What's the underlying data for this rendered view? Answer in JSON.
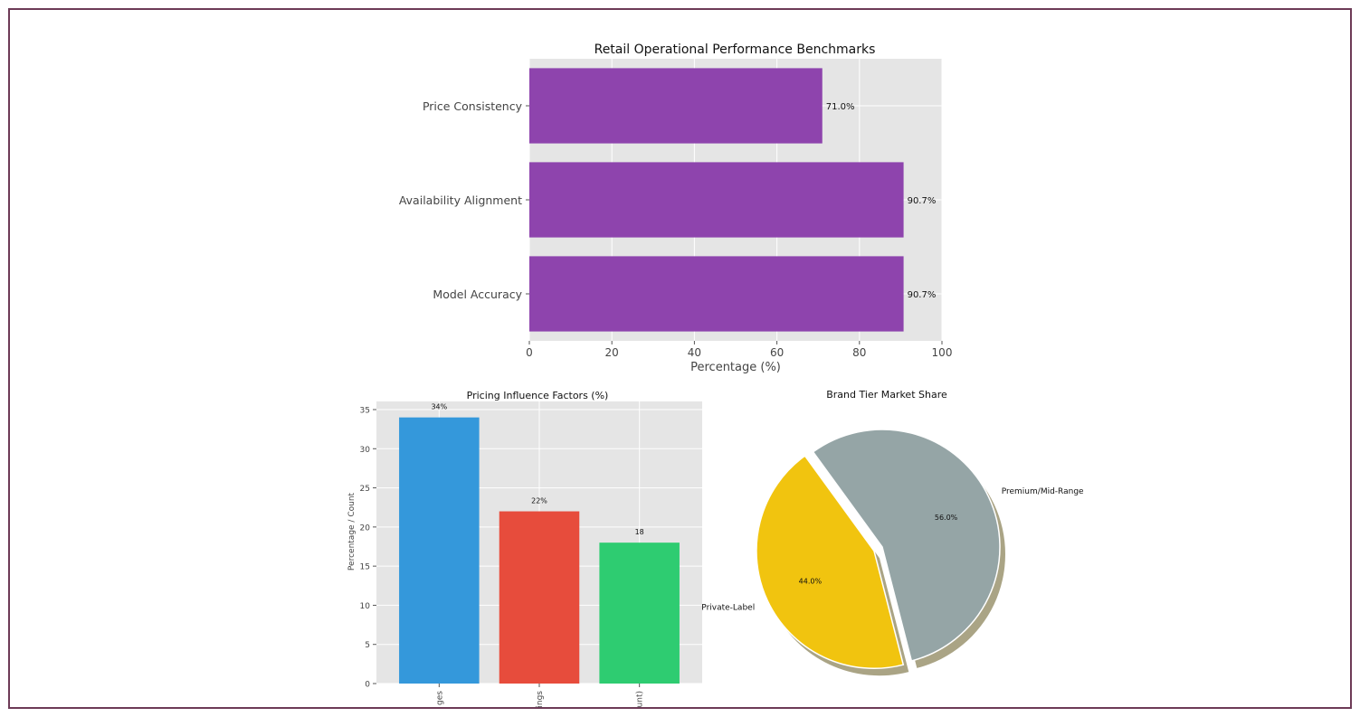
{
  "chart_data": [
    {
      "type": "bar",
      "orientation": "horizontal",
      "title": "Retail Operational Performance Benchmarks",
      "xlabel": "Percentage (%)",
      "ylabel": "",
      "categories": [
        "Price Consistency",
        "Availability Alignment",
        "Model Accuracy"
      ],
      "values": [
        71.0,
        90.7,
        90.7
      ],
      "labels": [
        "71.0%",
        "90.7%",
        "90.7%"
      ],
      "xlim": [
        0,
        100
      ],
      "xticks": [
        "0",
        "20",
        "40",
        "60",
        "80",
        "100"
      ],
      "grid": true,
      "bar_color": "#8e44ad"
    },
    {
      "type": "bar",
      "title": "Pricing Influence Factors (%)",
      "xlabel": "",
      "ylabel": "Percentage / Count",
      "categories": [
        "ges",
        "ings",
        "unt)"
      ],
      "values": [
        34,
        22,
        18
      ],
      "labels": [
        "34%",
        "22%",
        "18"
      ],
      "colors": [
        "#3498db",
        "#e74c3c",
        "#2ecc71"
      ],
      "ylim": [
        0,
        35
      ],
      "yticks": [
        "0",
        "5",
        "10",
        "15",
        "20",
        "25",
        "30",
        "35"
      ],
      "grid": true
    },
    {
      "type": "pie",
      "title": "Brand Tier Market Share",
      "slices": [
        {
          "name": "Premium/Mid-Range",
          "value": 56.0,
          "label": "56.0%",
          "color": "#95a5a6"
        },
        {
          "name": "Private-Label",
          "value": 44.0,
          "label": "44.0%",
          "color": "#f1c40f"
        }
      ],
      "explode": "Private-Label",
      "shadow": true
    }
  ]
}
